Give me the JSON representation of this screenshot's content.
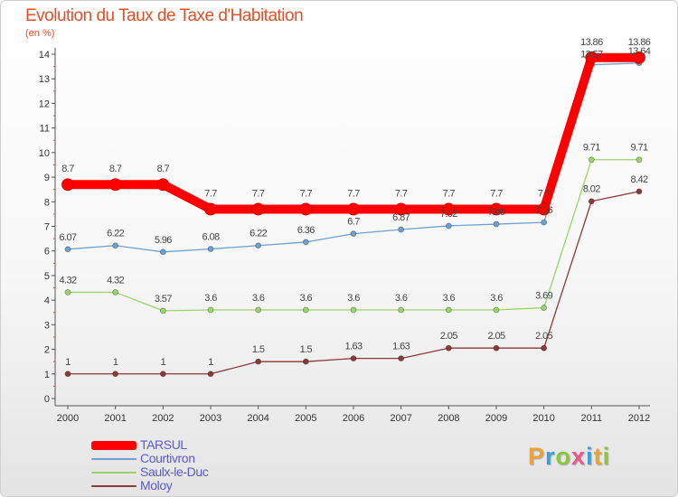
{
  "title": "Evolution du Taux de Taxe d'Habitation",
  "subtitle": "(en %)",
  "brand": {
    "text": "Proxiti",
    "colors": [
      "#e8a33a",
      "#3aa0d8",
      "#8cc63f",
      "#e85a8a",
      "#3aa0d8",
      "#e8a33a",
      "#8cc63f"
    ]
  },
  "chart_data": {
    "type": "line",
    "x": [
      "2000",
      "2001",
      "2002",
      "2003",
      "2004",
      "2005",
      "2006",
      "2007",
      "2008",
      "2009",
      "2010",
      "2011",
      "2012"
    ],
    "y_ticks": [
      "0",
      "1",
      "2",
      "3",
      "4",
      "5",
      "6",
      "7",
      "8",
      "9",
      "10",
      "11",
      "12",
      "13",
      "14"
    ],
    "ylim": [
      0,
      14
    ],
    "grid": false,
    "legend_position": "bottom-left",
    "series": [
      {
        "name": "TARSUL",
        "color": "#ff0000",
        "values": [
          8.7,
          8.7,
          8.7,
          7.7,
          7.7,
          7.7,
          7.7,
          7.7,
          7.7,
          7.7,
          7.7,
          13.86,
          13.86
        ],
        "labels": [
          "8.7",
          "8.7",
          "8.7",
          "7.7",
          "7.7",
          "7.7",
          "7.7",
          "7.7",
          "7.7",
          "7.7",
          "7.7",
          "13.86",
          "13.86"
        ]
      },
      {
        "name": "Courtivron",
        "color": "#6fa0cf",
        "values": [
          6.07,
          6.22,
          5.96,
          6.08,
          6.22,
          6.36,
          6.7,
          6.87,
          7.02,
          7.09,
          7.16,
          13.57,
          13.64
        ],
        "labels": [
          "6.07",
          "6.22",
          "5.96",
          "6.08",
          "6.22",
          "6.36",
          "6.7",
          "6.87",
          "7.02",
          "7.09",
          "7.16",
          "13.57",
          "13.64"
        ]
      },
      {
        "name": "Saulx-le-Duc",
        "color": "#9ad56a",
        "values": [
          4.32,
          4.32,
          3.57,
          3.6,
          3.6,
          3.6,
          3.6,
          3.6,
          3.6,
          3.6,
          3.69,
          9.71,
          9.71
        ],
        "labels": [
          "4.32",
          "4.32",
          "3.57",
          "3.6",
          "3.6",
          "3.6",
          "3.6",
          "3.6",
          "3.6",
          "3.6",
          "3.69",
          "9.71",
          "9.71"
        ]
      },
      {
        "name": "Moloy",
        "color": "#8a3a3a",
        "values": [
          1,
          1,
          1,
          1,
          1.5,
          1.5,
          1.63,
          1.63,
          2.05,
          2.05,
          2.05,
          8.02,
          8.42
        ],
        "labels": [
          "1",
          "1",
          "1",
          "1",
          "1.5",
          "1.5",
          "1.63",
          "1.63",
          "2.05",
          "2.05",
          "2.05",
          "8.02",
          "8.42"
        ]
      }
    ]
  }
}
